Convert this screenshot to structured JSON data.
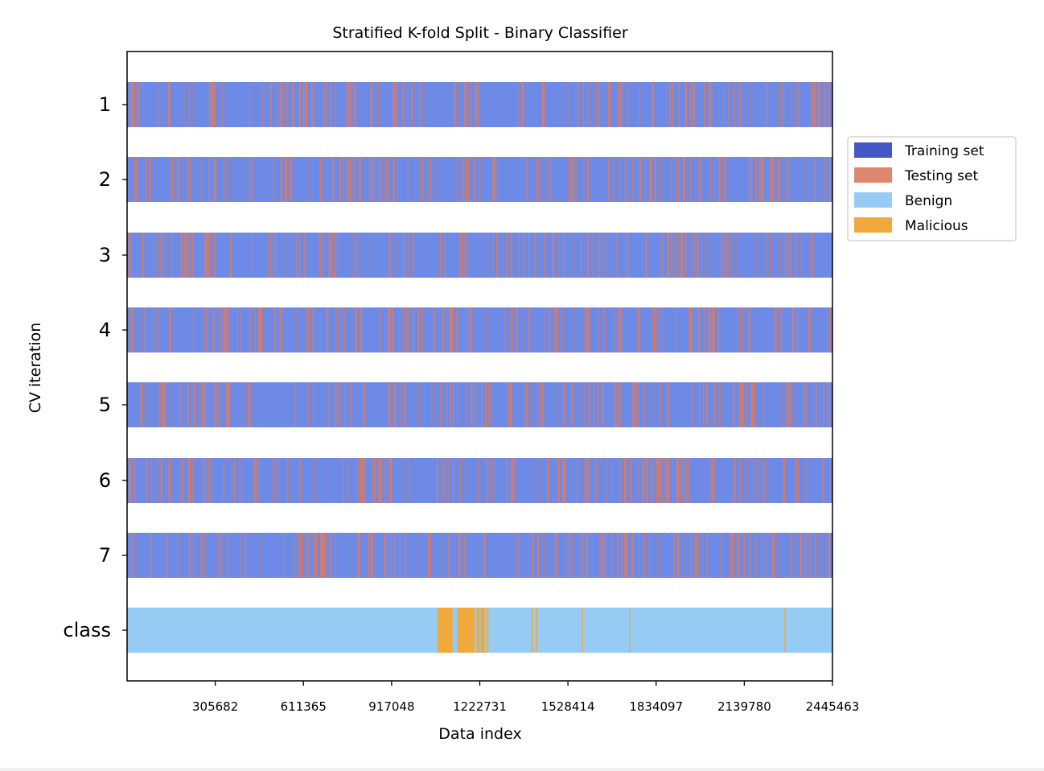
{
  "chart_data": {
    "type": "bar",
    "title": "Stratified K-fold Split - Binary Classifier",
    "xlabel": "Data index",
    "ylabel": "CV iteration",
    "xlim": [
      0,
      2445463
    ],
    "x_ticks": [
      305682,
      611365,
      917048,
      1222731,
      1528414,
      1834097,
      2139780,
      2445463
    ],
    "x_tick_labels": [
      "305682",
      "611365",
      "917048",
      "1222731",
      "1528414",
      "1834097",
      "2139780",
      "2445463"
    ],
    "rows": [
      {
        "label": "1",
        "type": "split"
      },
      {
        "label": "2",
        "type": "split"
      },
      {
        "label": "3",
        "type": "split"
      },
      {
        "label": "4",
        "type": "split"
      },
      {
        "label": "5",
        "type": "split"
      },
      {
        "label": "6",
        "type": "split"
      },
      {
        "label": "7",
        "type": "split"
      },
      {
        "label": "class",
        "type": "class"
      }
    ],
    "series": [
      {
        "name": "Training set",
        "color": "#4358c6"
      },
      {
        "name": "Testing set",
        "color": "#e0866e"
      },
      {
        "name": "Benign",
        "color": "#96cbf4"
      },
      {
        "name": "Malicious",
        "color": "#f2a93b"
      }
    ],
    "training_fill_color": "#6c8ae6",
    "testing_stripe_color": "#e07a5f",
    "malicious_segments": [
      [
        1075000,
        1128000
      ],
      [
        1145000,
        1205000
      ],
      [
        1212000,
        1222000
      ],
      [
        1226000,
        1240000
      ],
      [
        1247000,
        1253000
      ],
      [
        1402000,
        1407000
      ],
      [
        1418000,
        1422000
      ],
      [
        1576000,
        1578000
      ],
      [
        1740000,
        1742000
      ],
      [
        2279000,
        2281000
      ]
    ],
    "legend_position": "outside-right",
    "grid": false
  }
}
